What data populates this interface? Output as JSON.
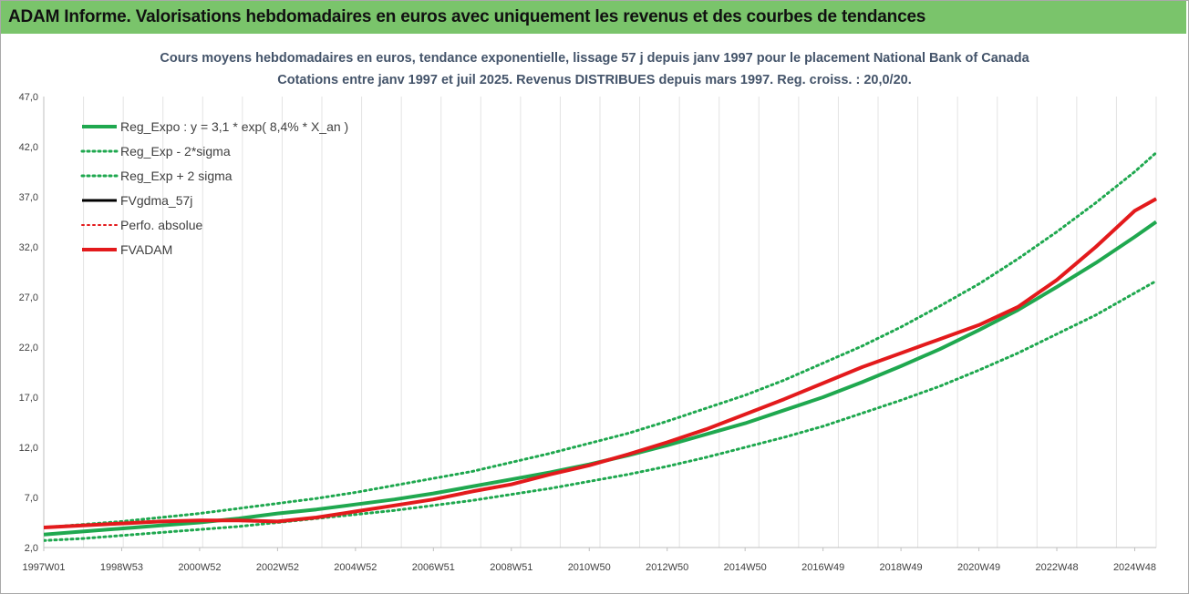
{
  "header": {
    "title": "ADAM Informe. Valorisations hebdomadaires en euros avec uniquement les revenus et des courbes de tendances"
  },
  "chart_data": {
    "type": "line",
    "title": "Cours moyens hebdomadaires en euros, tendance exponentielle, lissage 57 j depuis janv 1997  pour le placement National Bank of Canada",
    "subtitle": "Cotations entre janv 1997 et juil 2025. Revenus DISTRIBUES depuis mars 1997. Reg. croiss. : 20,0/20.",
    "xlabel": "",
    "ylabel": "",
    "ylim": [
      2.0,
      47.0
    ],
    "yticks": [
      "47,0",
      "42,0",
      "37,0",
      "32,0",
      "27,0",
      "22,0",
      "17,0",
      "12,0",
      "7,0",
      "2,0"
    ],
    "xlim": [
      1997.0,
      2025.55
    ],
    "x_tick_labels": [
      "1997W01",
      "1998W53",
      "2000W52",
      "2002W52",
      "2004W52",
      "2006W51",
      "2008W51",
      "2010W50",
      "2012W50",
      "2014W50",
      "2016W49",
      "2018W49",
      "2020W49",
      "2022W48",
      "2024W48"
    ],
    "x_ticks": [
      1997.0,
      1999.0,
      2001.0,
      2003.0,
      2005.0,
      2007.0,
      2009.0,
      2011.0,
      2013.0,
      2015.0,
      2017.0,
      2019.0,
      2021.0,
      2023.0,
      2025.0
    ],
    "grid": "vertical",
    "legend_position": "top-left",
    "x": [
      1997.0,
      1998.0,
      1999.0,
      2000.0,
      2001.0,
      2002.0,
      2003.0,
      2004.0,
      2005.0,
      2006.0,
      2007.0,
      2008.0,
      2009.0,
      2010.0,
      2011.0,
      2012.0,
      2013.0,
      2014.0,
      2015.0,
      2016.0,
      2017.0,
      2018.0,
      2019.0,
      2020.0,
      2021.0,
      2022.0,
      2023.0,
      2024.0,
      2025.0,
      2025.55
    ],
    "series": [
      {
        "name": "Reg_Expo : y = 3,1 * exp( 8,4% *  X_an )",
        "color": "#1fa84f",
        "style": "solid",
        "width": 4,
        "values": [
          3.3,
          3.6,
          3.9,
          4.2,
          4.5,
          4.9,
          5.4,
          5.8,
          6.3,
          6.8,
          7.4,
          8.1,
          8.8,
          9.5,
          10.3,
          11.2,
          12.2,
          13.3,
          14.4,
          15.7,
          17.0,
          18.5,
          20.1,
          21.8,
          23.7,
          25.7,
          28.0,
          30.4,
          33.0,
          34.5
        ]
      },
      {
        "name": "Reg_Exp - 2*sigma",
        "color": "#1fa84f",
        "style": "dotted",
        "width": 3,
        "values": [
          2.7,
          2.9,
          3.2,
          3.5,
          3.8,
          4.1,
          4.5,
          4.9,
          5.3,
          5.7,
          6.2,
          6.7,
          7.3,
          7.9,
          8.6,
          9.3,
          10.1,
          11.0,
          12.0,
          13.0,
          14.1,
          15.4,
          16.7,
          18.1,
          19.7,
          21.4,
          23.3,
          25.2,
          27.4,
          28.6
        ]
      },
      {
        "name": "Reg_Exp + 2 sigma",
        "color": "#1fa84f",
        "style": "dotted",
        "width": 3,
        "values": [
          4.0,
          4.3,
          4.6,
          5.0,
          5.4,
          5.9,
          6.4,
          6.9,
          7.5,
          8.2,
          8.9,
          9.6,
          10.5,
          11.4,
          12.4,
          13.4,
          14.6,
          15.9,
          17.2,
          18.7,
          20.4,
          22.1,
          24.0,
          26.1,
          28.3,
          30.8,
          33.5,
          36.4,
          39.5,
          41.4
        ]
      },
      {
        "name": "FVgdma_57j",
        "color": "#000000",
        "style": "solid",
        "width": 3,
        "values": [
          4.0,
          4.2,
          4.4,
          4.6,
          4.7,
          4.7,
          4.6,
          5.0,
          5.6,
          6.2,
          6.8,
          7.6,
          8.3,
          9.3,
          10.2,
          11.3,
          12.5,
          13.8,
          15.3,
          16.8,
          18.4,
          20.0,
          21.4,
          22.8,
          24.2,
          26.0,
          28.7,
          32.0,
          35.6,
          36.8
        ]
      },
      {
        "name": "Perfo. absolue",
        "color": "#e31a1c",
        "style": "dotted",
        "width": 2,
        "values": [
          4.0,
          4.2,
          4.4,
          4.6,
          4.7,
          4.7,
          4.6,
          5.0,
          5.6,
          6.2,
          6.8,
          7.6,
          8.3,
          9.3,
          10.2,
          11.3,
          12.5,
          13.8,
          15.3,
          16.8,
          18.4,
          20.0,
          21.4,
          22.8,
          24.2,
          26.0,
          28.7,
          32.0,
          35.6,
          36.8
        ]
      },
      {
        "name": "FVADAM",
        "color": "#e31a1c",
        "style": "solid",
        "width": 4,
        "values": [
          4.0,
          4.2,
          4.4,
          4.6,
          4.7,
          4.7,
          4.6,
          5.0,
          5.6,
          6.2,
          6.8,
          7.6,
          8.3,
          9.3,
          10.2,
          11.3,
          12.5,
          13.8,
          15.3,
          16.8,
          18.4,
          20.0,
          21.4,
          22.8,
          24.2,
          26.0,
          28.7,
          32.0,
          35.6,
          36.8
        ]
      }
    ]
  }
}
